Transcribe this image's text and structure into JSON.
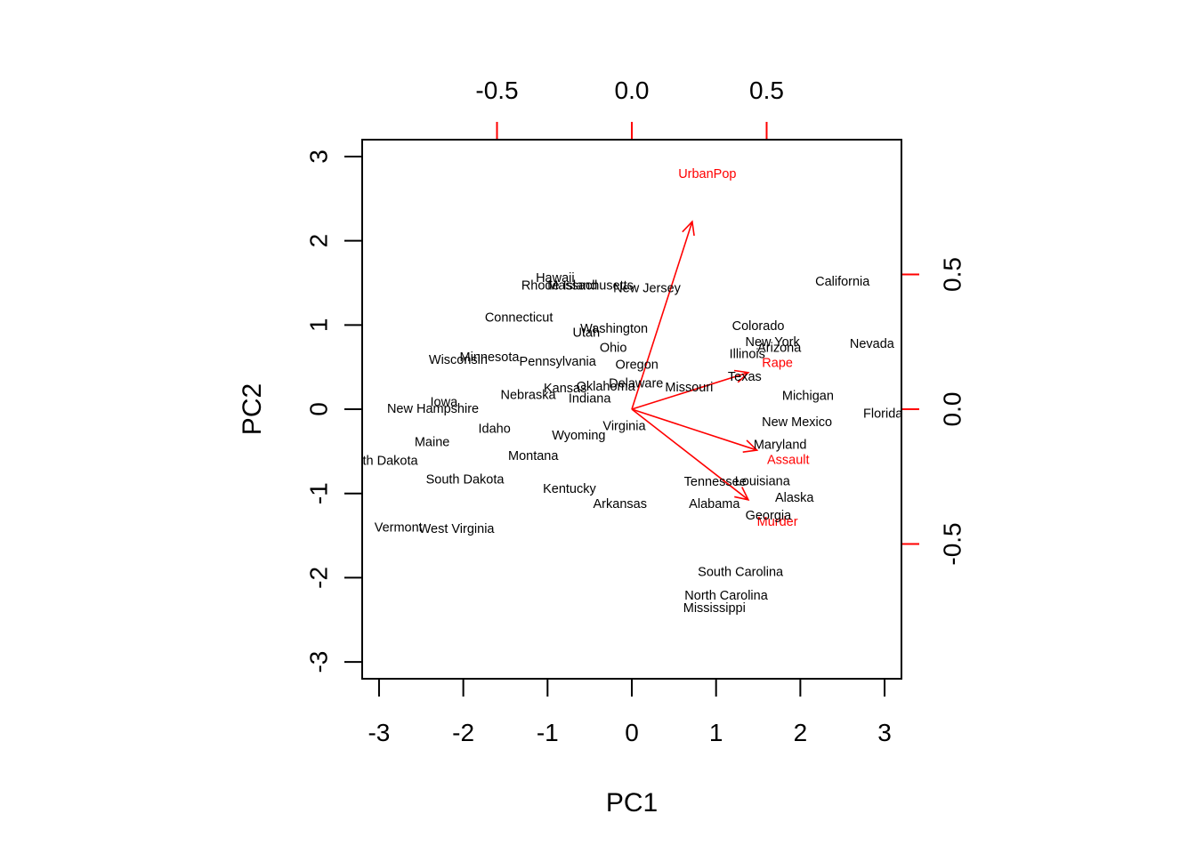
{
  "chart_data": {
    "type": "scatter",
    "subtype": "biplot",
    "xlabel": "PC1",
    "ylabel": "PC2",
    "xlim": [
      -3.2,
      3.2
    ],
    "ylim": [
      -3.2,
      3.2
    ],
    "x_ticks": [
      -3,
      -2,
      -1,
      0,
      1,
      2,
      3
    ],
    "y_ticks": [
      -3,
      -2,
      -1,
      0,
      1,
      2,
      3
    ],
    "top_ticks": [
      -0.5,
      0.0,
      0.5
    ],
    "right_ticks": [
      -0.5,
      0.0,
      0.5
    ],
    "tick_labels": {
      "bottom": [
        "-3",
        "-2",
        "-1",
        "0",
        "1",
        "2",
        "3"
      ],
      "left": [
        "-3",
        "-2",
        "-1",
        "0",
        "1",
        "2",
        "3"
      ],
      "top": [
        "-0.5",
        "0.0",
        "0.5"
      ],
      "right": [
        "-0.5",
        "0.0",
        "0.5"
      ]
    },
    "colors": {
      "points": "#000000",
      "loadings": "#ff0000"
    },
    "points": [
      {
        "name": "Alabama",
        "x": 0.98,
        "y": -1.13
      },
      {
        "name": "Alaska",
        "x": 1.93,
        "y": -1.06
      },
      {
        "name": "Arizona",
        "x": 1.75,
        "y": 0.72
      },
      {
        "name": "Arkansas",
        "x": -0.14,
        "y": -1.13
      },
      {
        "name": "California",
        "x": 2.5,
        "y": 1.51
      },
      {
        "name": "Colorado",
        "x": 1.5,
        "y": 0.98
      },
      {
        "name": "Connecticut",
        "x": -1.34,
        "y": 1.08
      },
      {
        "name": "Delaware",
        "x": 0.05,
        "y": 0.3
      },
      {
        "name": "Florida",
        "x": 2.98,
        "y": -0.06
      },
      {
        "name": "Georgia",
        "x": 1.62,
        "y": -1.27
      },
      {
        "name": "Hawaii",
        "x": -0.91,
        "y": 1.55
      },
      {
        "name": "Idaho",
        "x": -1.63,
        "y": -0.24
      },
      {
        "name": "Illinois",
        "x": 1.37,
        "y": 0.65
      },
      {
        "name": "Indiana",
        "x": -0.5,
        "y": 0.12
      },
      {
        "name": "Iowa",
        "x": -2.23,
        "y": 0.08
      },
      {
        "name": "Kansas",
        "x": -0.79,
        "y": 0.24
      },
      {
        "name": "Kentucky",
        "x": -0.74,
        "y": -0.95
      },
      {
        "name": "Louisiana",
        "x": 1.55,
        "y": -0.86
      },
      {
        "name": "Maine",
        "x": -2.37,
        "y": -0.4
      },
      {
        "name": "Maryland",
        "x": 1.76,
        "y": -0.43
      },
      {
        "name": "Massachusetts",
        "x": -0.49,
        "y": 1.46
      },
      {
        "name": "Michigan",
        "x": 2.09,
        "y": 0.15
      },
      {
        "name": "Minnesota",
        "x": -1.69,
        "y": 0.61
      },
      {
        "name": "Mississippi",
        "x": 0.98,
        "y": -2.37
      },
      {
        "name": "Missouri",
        "x": 0.68,
        "y": 0.25
      },
      {
        "name": "Montana",
        "x": -1.17,
        "y": -0.56
      },
      {
        "name": "Nebraska",
        "x": -1.23,
        "y": 0.16
      },
      {
        "name": "Nevada",
        "x": 2.85,
        "y": 0.77
      },
      {
        "name": "New Hampshire",
        "x": -2.36,
        "y": 0.0
      },
      {
        "name": "New Jersey",
        "x": 0.18,
        "y": 1.43
      },
      {
        "name": "New Mexico",
        "x": 1.96,
        "y": -0.16
      },
      {
        "name": "New York",
        "x": 1.67,
        "y": 0.79
      },
      {
        "name": "North Carolina",
        "x": 1.12,
        "y": -2.22
      },
      {
        "name": "North Dakota",
        "x": -2.99,
        "y": -0.62
      },
      {
        "name": "Ohio",
        "x": -0.22,
        "y": 0.72
      },
      {
        "name": "Oklahoma",
        "x": -0.31,
        "y": 0.26
      },
      {
        "name": "Oregon",
        "x": 0.06,
        "y": 0.52
      },
      {
        "name": "Pennsylvania",
        "x": -0.88,
        "y": 0.56
      },
      {
        "name": "Rhode Island",
        "x": -0.86,
        "y": 1.46
      },
      {
        "name": "South Carolina",
        "x": 1.29,
        "y": -1.94
      },
      {
        "name": "South Dakota",
        "x": -1.98,
        "y": -0.84
      },
      {
        "name": "Tennessee",
        "x": 0.99,
        "y": -0.87
      },
      {
        "name": "Texas",
        "x": 1.34,
        "y": 0.38
      },
      {
        "name": "Utah",
        "x": -0.54,
        "y": 0.9
      },
      {
        "name": "Vermont",
        "x": -2.77,
        "y": -1.41
      },
      {
        "name": "Virginia",
        "x": -0.09,
        "y": -0.21
      },
      {
        "name": "Washington",
        "x": -0.21,
        "y": 0.95
      },
      {
        "name": "West Virginia",
        "x": -2.08,
        "y": -1.43
      },
      {
        "name": "Wisconsin",
        "x": -2.06,
        "y": 0.58
      },
      {
        "name": "Wyoming",
        "x": -0.63,
        "y": -0.32
      }
    ],
    "loadings": [
      {
        "name": "Murder",
        "x": 0.54,
        "y": -0.42
      },
      {
        "name": "Assault",
        "x": 0.58,
        "y": -0.19
      },
      {
        "name": "UrbanPop",
        "x": 0.28,
        "y": 0.87
      },
      {
        "name": "Rape",
        "x": 0.54,
        "y": 0.17
      }
    ]
  }
}
